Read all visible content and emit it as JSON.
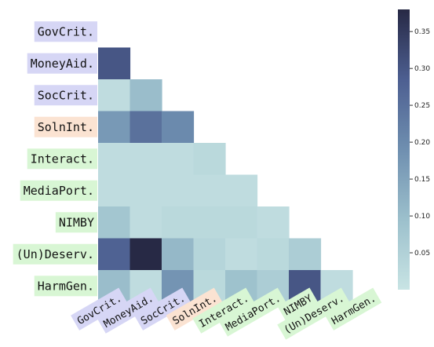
{
  "chart_data": {
    "type": "heatmap",
    "mask": "lower-triangle",
    "rows": [
      "GovCrit.",
      "MoneyAid.",
      "SocCrit.",
      "SolnInt.",
      "Interact.",
      "MediaPort.",
      "NIMBY",
      "(Un)Deserv.",
      "HarmGen."
    ],
    "cols": [
      "GovCrit.",
      "MoneyAid.",
      "SocCrit.",
      "SolnInt.",
      "Interact.",
      "MediaPort.",
      "NIMBY",
      "(Un)Deserv.",
      "HarmGen."
    ],
    "label_colors": {
      "GovCrit.": "#d6d6f5",
      "MoneyAid.": "#d6d6f5",
      "SocCrit.": "#d6d6f5",
      "SolnInt.": "#fbe3d2",
      "Interact.": "#d8f6d4",
      "MediaPort.": "#d8f6d4",
      "NIMBY": "#d8f6d4",
      "(Un)Deserv.": "#d8f6d4",
      "HarmGen.": "#d8f6d4"
    },
    "values": [
      [],
      [
        0.3
      ],
      [
        0.02,
        0.1
      ],
      [
        0.17,
        0.25,
        0.2
      ],
      [
        0.02,
        0.02,
        0.02,
        0.03
      ],
      [
        0.02,
        0.02,
        0.02,
        0.02,
        0.02
      ],
      [
        0.08,
        0.02,
        0.03,
        0.03,
        0.03,
        0.02
      ],
      [
        0.28,
        0.38,
        0.11,
        0.04,
        0.02,
        0.03,
        0.06
      ],
      [
        0.1,
        0.02,
        0.18,
        0.03,
        0.09,
        0.06,
        0.3,
        0.02
      ]
    ],
    "colorbar": {
      "min": 0.0,
      "max": 0.38,
      "ticks": [
        0.05,
        0.1,
        0.15,
        0.2,
        0.25,
        0.3,
        0.35
      ],
      "tick_labels": [
        "0.05",
        "0.10",
        "0.15",
        "0.20",
        "0.25",
        "0.30",
        "0.35"
      ],
      "colormap": [
        "#c8e4e4",
        "#9cc0cc",
        "#6f8fb0",
        "#4d5f91",
        "#272945"
      ]
    },
    "title": "",
    "xlabel": "",
    "ylabel": ""
  }
}
